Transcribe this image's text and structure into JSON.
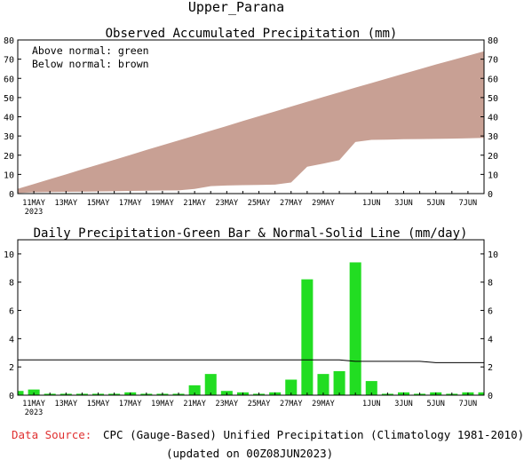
{
  "page_title": "Upper_Parana",
  "footer": {
    "source_label": "Data Source:",
    "source_text": "CPC (Gauge-Based) Unified Precipitation (Climatology 1981-2010)",
    "updated": "(updated on 00Z08JUN2023)"
  },
  "colors": {
    "above_normal": "#00cc00",
    "below_normal": "#c8a094",
    "bar": "#22dd22",
    "source_label": "#e03030"
  },
  "chart_data": [
    {
      "type": "area",
      "title": "Observed Accumulated Precipitation (mm)",
      "annotations": [
        "Above normal: green",
        "Below normal: brown"
      ],
      "ylim": [
        0,
        80
      ],
      "yticks": [
        0,
        10,
        20,
        30,
        40,
        50,
        60,
        70,
        80
      ],
      "xlim": [
        0,
        29
      ],
      "xtick_labels": [
        {
          "x": 1,
          "label": "11MAY"
        },
        {
          "x": 3,
          "label": "13MAY"
        },
        {
          "x": 5,
          "label": "15MAY"
        },
        {
          "x": 7,
          "label": "17MAY"
        },
        {
          "x": 9,
          "label": "19MAY"
        },
        {
          "x": 11,
          "label": "21MAY"
        },
        {
          "x": 13,
          "label": "23MAY"
        },
        {
          "x": 15,
          "label": "25MAY"
        },
        {
          "x": 17,
          "label": "27MAY"
        },
        {
          "x": 19,
          "label": "29MAY"
        },
        {
          "x": 22,
          "label": "1JUN"
        },
        {
          "x": 24,
          "label": "3JUN"
        },
        {
          "x": 26,
          "label": "5JUN"
        },
        {
          "x": 28,
          "label": "7JUN"
        }
      ],
      "year_label": "2023",
      "x": [
        0,
        1,
        2,
        3,
        4,
        5,
        6,
        7,
        8,
        9,
        10,
        11,
        12,
        13,
        14,
        15,
        16,
        17,
        18,
        19,
        20,
        21,
        22,
        23,
        24,
        25,
        26,
        27,
        28,
        29
      ],
      "series": [
        {
          "name": "Observed",
          "values": [
            0.3,
            0.7,
            0.8,
            0.9,
            1.0,
            1.1,
            1.2,
            1.4,
            1.5,
            1.6,
            1.7,
            2.4,
            3.9,
            4.2,
            4.4,
            4.5,
            4.7,
            5.8,
            14.0,
            15.6,
            17.4,
            26.9,
            28.0,
            28.1,
            28.3,
            28.4,
            28.5,
            28.6,
            28.8,
            29.0
          ]
        },
        {
          "name": "Normal",
          "values": [
            2.5,
            5.0,
            7.5,
            10.0,
            12.6,
            15.1,
            17.6,
            20.1,
            22.7,
            25.2,
            27.7,
            30.2,
            32.7,
            35.2,
            37.8,
            40.3,
            42.8,
            45.3,
            47.8,
            50.3,
            52.7,
            55.2,
            57.6,
            60.0,
            62.4,
            64.8,
            67.2,
            69.5,
            71.8,
            74.1
          ]
        }
      ]
    },
    {
      "type": "bar",
      "title": "Daily Precipitation-Green Bar & Normal-Solid Line (mm/day)",
      "ylim": [
        0,
        11
      ],
      "yticks": [
        0,
        2,
        4,
        6,
        8,
        10
      ],
      "xlim": [
        0,
        29
      ],
      "x": [
        0,
        1,
        2,
        3,
        4,
        5,
        6,
        7,
        8,
        9,
        10,
        11,
        12,
        13,
        14,
        15,
        16,
        17,
        18,
        19,
        20,
        21,
        22,
        23,
        24,
        25,
        26,
        27,
        28,
        29
      ],
      "series": [
        {
          "name": "Daily Precipitation",
          "values": [
            0.3,
            0.4,
            0.1,
            0.1,
            0.1,
            0.1,
            0.1,
            0.2,
            0.1,
            0.1,
            0.1,
            0.7,
            1.5,
            0.3,
            0.2,
            0.1,
            0.2,
            1.1,
            8.2,
            1.5,
            1.7,
            9.4,
            1.0,
            0.1,
            0.2,
            0.1,
            0.2,
            0.1,
            0.2,
            0.2
          ]
        },
        {
          "name": "Normal",
          "values": [
            2.5,
            2.5,
            2.5,
            2.5,
            2.5,
            2.5,
            2.5,
            2.5,
            2.5,
            2.5,
            2.5,
            2.5,
            2.5,
            2.5,
            2.5,
            2.5,
            2.5,
            2.5,
            2.5,
            2.5,
            2.5,
            2.4,
            2.4,
            2.4,
            2.4,
            2.4,
            2.3,
            2.3,
            2.3,
            2.3
          ]
        }
      ]
    }
  ]
}
